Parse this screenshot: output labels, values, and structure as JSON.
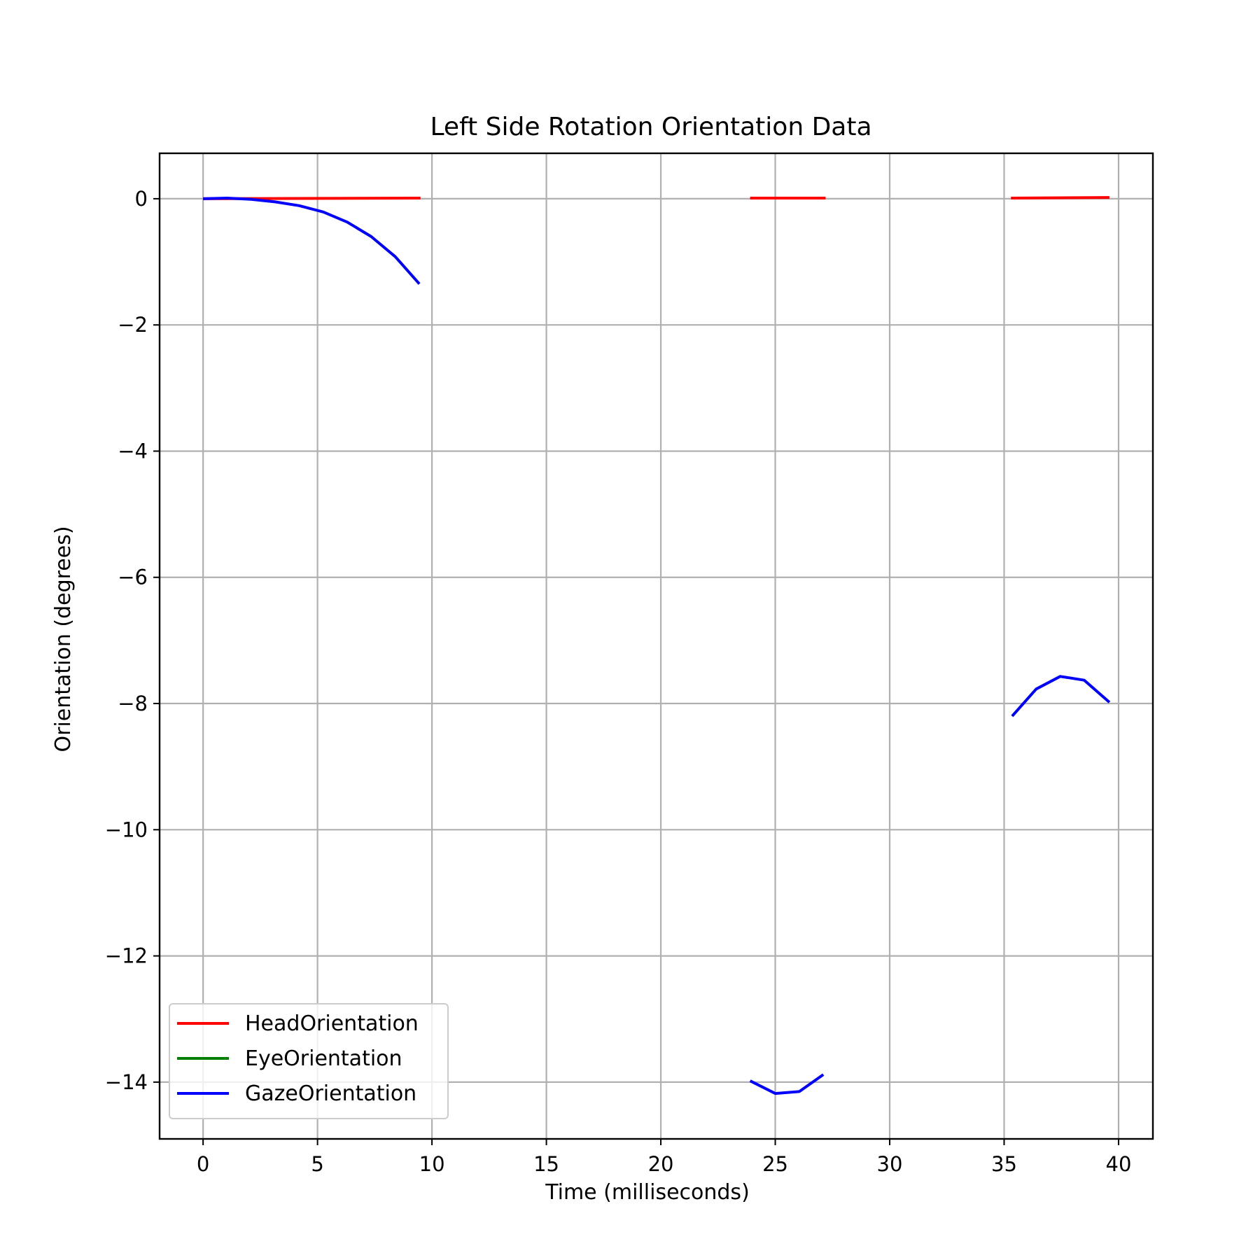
{
  "chart_data": {
    "type": "line",
    "title": "Left Side Rotation Orientation Data",
    "xlabel": "Time (milliseconds)",
    "ylabel": "Orientation (degrees)",
    "xlim": [
      -1.9,
      41.5
    ],
    "ylim": [
      -14.9,
      0.72
    ],
    "xticks": [
      0,
      5,
      10,
      15,
      20,
      25,
      30,
      35,
      40
    ],
    "xtick_labels": [
      "0",
      "5",
      "10",
      "15",
      "20",
      "25",
      "30",
      "35",
      "40"
    ],
    "yticks": [
      0,
      -2,
      -4,
      -6,
      -8,
      -10,
      -12,
      -14
    ],
    "ytick_labels": [
      "0",
      "−2",
      "−4",
      "−6",
      "−8",
      "−10",
      "−12",
      "−14"
    ],
    "grid": true,
    "legend_position": "lower-left",
    "series": [
      {
        "name": "HeadOrientation",
        "color": "#ff0000",
        "segments": [
          [
            [
              0,
              0.0
            ],
            [
              9.5,
              0.01
            ]
          ],
          [
            [
              23.9,
              0.01
            ],
            [
              27.2,
              0.01
            ]
          ],
          [
            [
              35.3,
              0.01
            ],
            [
              39.6,
              0.02
            ]
          ]
        ]
      },
      {
        "name": "EyeOrientation",
        "color": "#008000",
        "segments": []
      },
      {
        "name": "GazeOrientation",
        "color": "#0000ff",
        "segments": [
          [
            [
              0,
              0.0
            ],
            [
              1.05,
              0.01
            ],
            [
              2.1,
              -0.01
            ],
            [
              3.15,
              -0.05
            ],
            [
              4.2,
              -0.11
            ],
            [
              5.25,
              -0.21
            ],
            [
              6.3,
              -0.37
            ],
            [
              7.35,
              -0.6
            ],
            [
              8.4,
              -0.92
            ],
            [
              9.45,
              -1.35
            ]
          ],
          [
            [
              23.9,
              -13.98
            ],
            [
              25.0,
              -14.18
            ],
            [
              26.05,
              -14.15
            ],
            [
              27.1,
              -13.88
            ]
          ],
          [
            [
              35.35,
              -8.2
            ],
            [
              36.4,
              -7.77
            ],
            [
              37.45,
              -7.57
            ],
            [
              38.5,
              -7.63
            ],
            [
              39.6,
              -7.98
            ]
          ]
        ]
      }
    ]
  }
}
